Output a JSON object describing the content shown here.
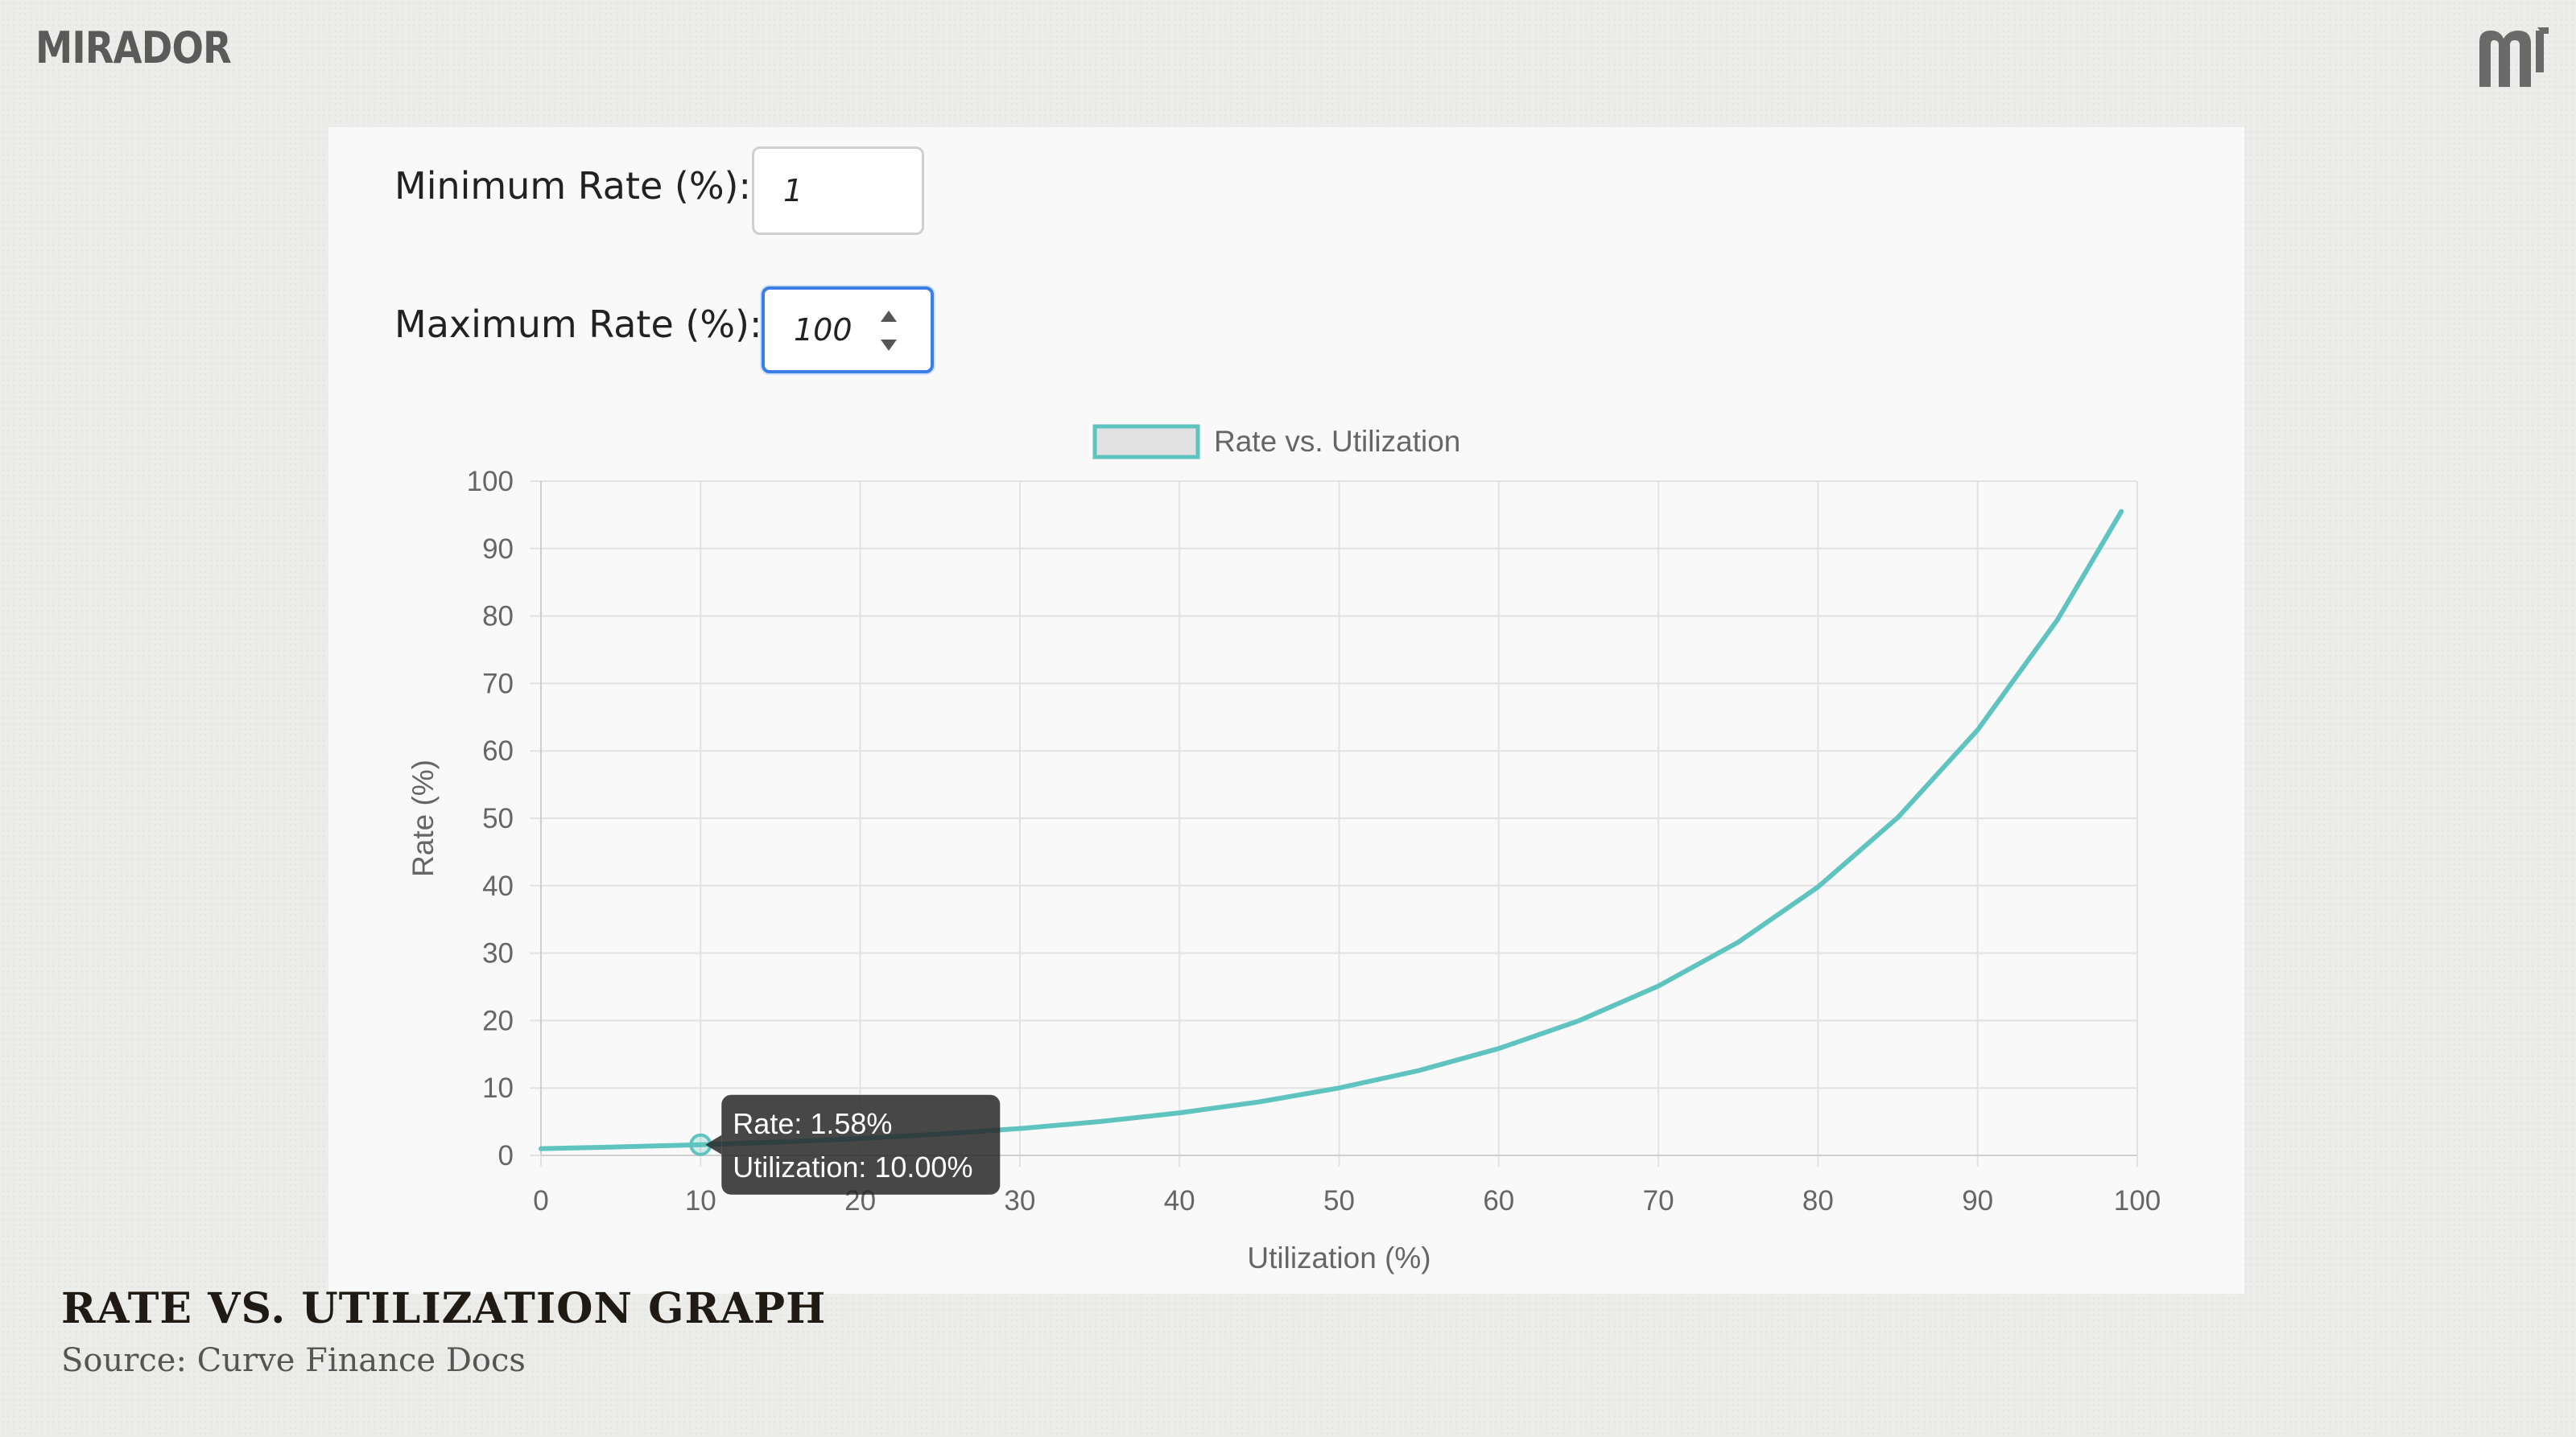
{
  "brand": {
    "name": "MIRADOR",
    "mark_icon": "mirador-m-logo"
  },
  "form": {
    "min_rate_label": "Minimum Rate (%):",
    "min_rate_value": "1",
    "max_rate_label": "Maximum Rate (%):",
    "max_rate_value": "100"
  },
  "chart_data": {
    "type": "line",
    "title": "",
    "legend": {
      "label": "Rate vs. Utilization",
      "position": "top-center"
    },
    "xlabel": "Utilization (%)",
    "ylabel": "Rate (%)",
    "xlim": [
      0,
      100
    ],
    "ylim": [
      0,
      100
    ],
    "xticks": [
      0,
      10,
      20,
      30,
      40,
      50,
      60,
      70,
      80,
      90,
      100
    ],
    "yticks": [
      0,
      10,
      20,
      30,
      40,
      50,
      60,
      70,
      80,
      90,
      100
    ],
    "grid": true,
    "series": [
      {
        "name": "Rate vs. Utilization",
        "color": "#5fc4c0",
        "x": [
          0,
          5,
          10,
          15,
          20,
          25,
          30,
          35,
          40,
          45,
          50,
          55,
          60,
          65,
          70,
          75,
          80,
          85,
          90,
          95,
          99
        ],
        "y": [
          1.0,
          1.26,
          1.58,
          2.0,
          2.51,
          3.16,
          3.98,
          5.01,
          6.31,
          7.94,
          10.0,
          12.59,
          15.85,
          19.95,
          25.12,
          31.62,
          39.81,
          50.12,
          63.1,
          79.43,
          95.5
        ]
      }
    ],
    "tooltip": {
      "rate_text": "Rate: 1.58%",
      "util_text": "Utilization: 10.00%",
      "point": {
        "x": 10,
        "y": 1.58
      }
    }
  },
  "caption": {
    "title": "RATE VS. UTILIZATION GRAPH",
    "source": "Source: Curve Finance Docs"
  }
}
